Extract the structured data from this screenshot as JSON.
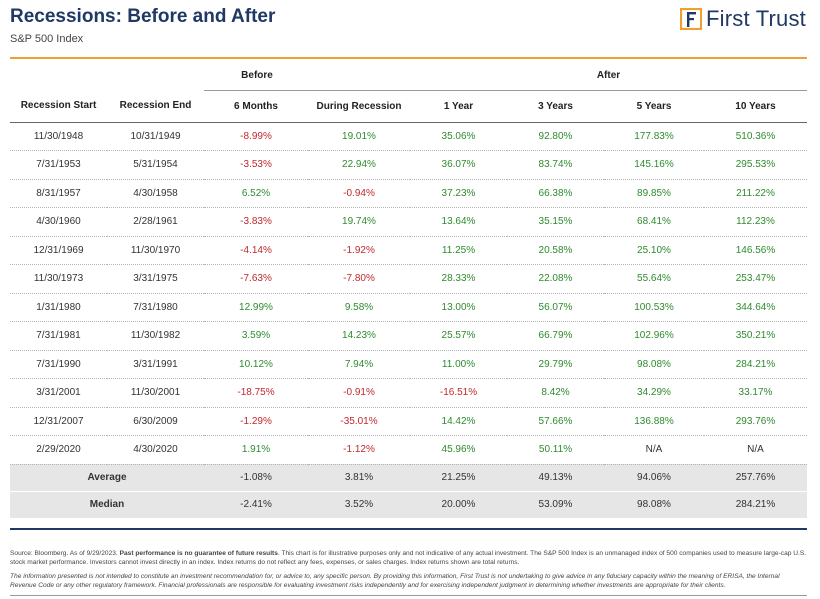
{
  "header": {
    "title": "Recessions: Before and After",
    "subtitle": "S&P 500 Index",
    "logo_text": "First Trust",
    "accent_color": "#f0a030",
    "brand_color": "#1f3864"
  },
  "chart_data": {
    "type": "table",
    "group_headers": {
      "before": "Before",
      "after": "After"
    },
    "columns": [
      "Recession Start",
      "Recession End",
      "6 Months",
      "During Recession",
      "1 Year",
      "3 Years",
      "5 Years",
      "10 Years"
    ],
    "rows": [
      [
        "11/30/1948",
        "10/31/1949",
        "-8.99%",
        "19.01%",
        "35.06%",
        "92.80%",
        "177.83%",
        "510.36%"
      ],
      [
        "7/31/1953",
        "5/31/1954",
        "-3.53%",
        "22.94%",
        "36.07%",
        "83.74%",
        "145.16%",
        "295.53%"
      ],
      [
        "8/31/1957",
        "4/30/1958",
        "6.52%",
        "-0.94%",
        "37.23%",
        "66.38%",
        "89.85%",
        "211.22%"
      ],
      [
        "4/30/1960",
        "2/28/1961",
        "-3.83%",
        "19.74%",
        "13.64%",
        "35.15%",
        "68.41%",
        "112.23%"
      ],
      [
        "12/31/1969",
        "11/30/1970",
        "-4.14%",
        "-1.92%",
        "11.25%",
        "20.58%",
        "25.10%",
        "146.56%"
      ],
      [
        "11/30/1973",
        "3/31/1975",
        "-7.63%",
        "-7.80%",
        "28.33%",
        "22.08%",
        "55.64%",
        "253.47%"
      ],
      [
        "1/31/1980",
        "7/31/1980",
        "12.99%",
        "9.58%",
        "13.00%",
        "56.07%",
        "100.53%",
        "344.64%"
      ],
      [
        "7/31/1981",
        "11/30/1982",
        "3.59%",
        "14.23%",
        "25.57%",
        "66.79%",
        "102.96%",
        "350.21%"
      ],
      [
        "7/31/1990",
        "3/31/1991",
        "10.12%",
        "7.94%",
        "11.00%",
        "29.79%",
        "98.08%",
        "284.21%"
      ],
      [
        "3/31/2001",
        "11/30/2001",
        "-18.75%",
        "-0.91%",
        "-16.51%",
        "8.42%",
        "34.29%",
        "33.17%"
      ],
      [
        "12/31/2007",
        "6/30/2009",
        "-1.29%",
        "-35.01%",
        "14.42%",
        "57.66%",
        "136.88%",
        "293.76%"
      ],
      [
        "2/29/2020",
        "4/30/2020",
        "1.91%",
        "-1.12%",
        "45.96%",
        "50.11%",
        "N/A",
        "N/A"
      ]
    ],
    "summary": [
      {
        "label": "Average",
        "values": [
          "-1.08%",
          "3.81%",
          "21.25%",
          "49.13%",
          "94.06%",
          "257.76%"
        ]
      },
      {
        "label": "Median",
        "values": [
          "-2.41%",
          "3.52%",
          "20.00%",
          "53.09%",
          "98.08%",
          "284.21%"
        ]
      }
    ],
    "colors": {
      "negative": "#c0282d",
      "positive": "#2e8b2e"
    }
  },
  "footer": {
    "source_prefix": "Source: Bloomberg. As of 9/29/2023. ",
    "source_bold": "Past performance is no guarantee of future results",
    "source_rest": ". This chart is for illustrative purposes only and not indicative of any actual investment. The S&P 500 Index is an unmanaged index of 500 companies used to measure large-cap U.S. stock market performance. Investors cannot invest directly in an index. Index returns do not reflect any fees, expenses, or sales charges. Index returns shown are total returns.",
    "disclaimer": "The information presented is not intended to constitute an investment recommendation for, or advice to, any specific person. By providing this information, First Trust is not undertaking to give advice in any fiduciary capacity within the meaning of ERISA, the Internal Revenue Code or any other regulatory framework. Financial professionals are responsible for evaluating investment risks independently and for exercising independent judgment in determining whether investments are appropriate for their clients."
  }
}
